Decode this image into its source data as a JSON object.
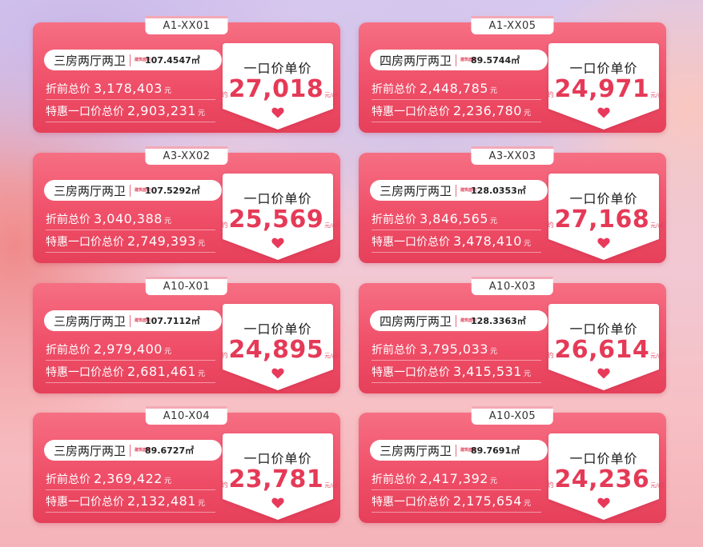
{
  "cards": [
    {
      "code": "A1-XX01",
      "rooms": "三房两厅两卫",
      "area_label": "建筑面积",
      "area": "107.4547㎡",
      "orig_label": "折前总价",
      "orig": "3,178,403",
      "orig_unit": "元",
      "promo_label": "特惠一口价总价",
      "promo": "2,903,231",
      "promo_unit": "元",
      "price_label": "一口价单价",
      "approx": "约",
      "unit_price": "27,018",
      "price_unit": "元/㎡"
    },
    {
      "code": "A1-XX05",
      "rooms": "四房两厅两卫",
      "area_label": "建筑面积",
      "area": "89.5744㎡",
      "orig_label": "折前总价",
      "orig": "2,448,785",
      "orig_unit": "元",
      "promo_label": "特惠一口价总价",
      "promo": "2,236,780",
      "promo_unit": "元",
      "price_label": "一口价单价",
      "approx": "约",
      "unit_price": "24,971",
      "price_unit": "元/㎡"
    },
    {
      "code": "A3-XX02",
      "rooms": "三房两厅两卫",
      "area_label": "建筑面积",
      "area": "107.5292㎡",
      "orig_label": "折前总价",
      "orig": "3,040,388",
      "orig_unit": "元",
      "promo_label": "特惠一口价总价",
      "promo": "2,749,393",
      "promo_unit": "元",
      "price_label": "一口价单价",
      "approx": "约",
      "unit_price": "25,569",
      "price_unit": "元/㎡"
    },
    {
      "code": "A3-XX03",
      "rooms": "三房两厅两卫",
      "area_label": "建筑面积",
      "area": "128.0353㎡",
      "orig_label": "折前总价",
      "orig": "3,846,565",
      "orig_unit": "元",
      "promo_label": "特惠一口价总价",
      "promo": "3,478,410",
      "promo_unit": "元",
      "price_label": "一口价单价",
      "approx": "约",
      "unit_price": "27,168",
      "price_unit": "元/㎡"
    },
    {
      "code": "A10-X01",
      "rooms": "三房两厅两卫",
      "area_label": "建筑面积",
      "area": "107.7112㎡",
      "orig_label": "折前总价",
      "orig": "2,979,400",
      "orig_unit": "元",
      "promo_label": "特惠一口价总价",
      "promo": "2,681,461",
      "promo_unit": "元",
      "price_label": "一口价单价",
      "approx": "约",
      "unit_price": "24,895",
      "price_unit": "元/㎡"
    },
    {
      "code": "A10-X03",
      "rooms": "四房两厅两卫",
      "area_label": "建筑面积",
      "area": "128.3363㎡",
      "orig_label": "折前总价",
      "orig": "3,795,033",
      "orig_unit": "元",
      "promo_label": "特惠一口价总价",
      "promo": "3,415,531",
      "promo_unit": "元",
      "price_label": "一口价单价",
      "approx": "约",
      "unit_price": "26,614",
      "price_unit": "元/㎡"
    },
    {
      "code": "A10-X04",
      "rooms": "三房两厅两卫",
      "area_label": "建筑面积",
      "area": "89.6727㎡",
      "orig_label": "折前总价",
      "orig": "2,369,422",
      "orig_unit": "元",
      "promo_label": "特惠一口价总价",
      "promo": "2,132,481",
      "promo_unit": "元",
      "price_label": "一口价单价",
      "approx": "约",
      "unit_price": "23,781",
      "price_unit": "元/㎡"
    },
    {
      "code": "A10-X05",
      "rooms": "三房两厅两卫",
      "area_label": "建筑面积",
      "area": "89.7691㎡",
      "orig_label": "折前总价",
      "orig": "2,417,392",
      "orig_unit": "元",
      "promo_label": "特惠一口价总价",
      "promo": "2,175,654",
      "promo_unit": "元",
      "price_label": "一口价单价",
      "approx": "约",
      "unit_price": "24,236",
      "price_unit": "元/㎡"
    }
  ],
  "colors": {
    "card": "#ef4d67",
    "accent": "#e53a57",
    "heart": "#e8395a"
  },
  "icons": {
    "heart": "heart-icon"
  }
}
